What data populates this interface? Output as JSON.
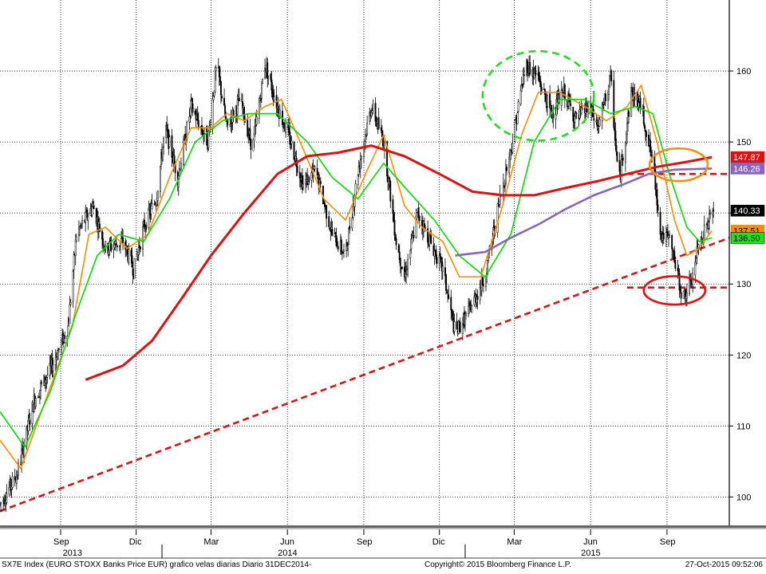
{
  "chart_data": {
    "type": "candlestick",
    "x_axis": {
      "month_labels": [
        {
          "label": "Sep",
          "date": "2013-09-01"
        },
        {
          "label": "Dic",
          "date": "2013-12-01"
        },
        {
          "label": "Mar",
          "date": "2014-03-01"
        },
        {
          "label": "Jun",
          "date": "2014-06-01"
        },
        {
          "label": "Sep",
          "date": "2014-09-01"
        },
        {
          "label": "Dic",
          "date": "2014-12-01"
        },
        {
          "label": "Mar",
          "date": "2015-03-01"
        },
        {
          "label": "Jun",
          "date": "2015-06-01"
        },
        {
          "label": "Sep",
          "date": "2015-09-01"
        }
      ],
      "year_labels": [
        {
          "label": "2013",
          "date": "2013-09-15"
        },
        {
          "label": "2014",
          "date": "2014-06-01"
        },
        {
          "label": "2015",
          "date": "2015-06-01"
        }
      ],
      "range": [
        "2013-06-20",
        "2015-11-15"
      ]
    },
    "y_axis": {
      "ticks": [
        100,
        110,
        120,
        130,
        140,
        150,
        160
      ],
      "range": [
        96,
        170
      ],
      "grid": true,
      "side": "right"
    },
    "price_path": [
      [
        "2013-06-20",
        99
      ],
      [
        "2013-07-10",
        103
      ],
      [
        "2013-08-01",
        114
      ],
      [
        "2013-08-20",
        118
      ],
      [
        "2013-09-10",
        124
      ],
      [
        "2013-09-20",
        137
      ],
      [
        "2013-10-10",
        141
      ],
      [
        "2013-10-25",
        135
      ],
      [
        "2013-11-15",
        136
      ],
      [
        "2013-11-28",
        132
      ],
      [
        "2013-12-10",
        138
      ],
      [
        "2013-12-25",
        142
      ],
      [
        "2014-01-05",
        152
      ],
      [
        "2014-01-20",
        145
      ],
      [
        "2014-02-05",
        155
      ],
      [
        "2014-02-25",
        150
      ],
      [
        "2014-03-08",
        161
      ],
      [
        "2014-03-20",
        152
      ],
      [
        "2014-04-05",
        156
      ],
      [
        "2014-04-20",
        149
      ],
      [
        "2014-05-05",
        161
      ],
      [
        "2014-05-20",
        155
      ],
      [
        "2014-06-05",
        150
      ],
      [
        "2014-06-20",
        144
      ],
      [
        "2014-07-05",
        146
      ],
      [
        "2014-07-25",
        137
      ],
      [
        "2014-08-10",
        134
      ],
      [
        "2014-08-25",
        146
      ],
      [
        "2014-09-10",
        155
      ],
      [
        "2014-09-25",
        150
      ],
      [
        "2014-10-10",
        136
      ],
      [
        "2014-10-20",
        131
      ],
      [
        "2014-11-05",
        140
      ],
      [
        "2014-11-20",
        136
      ],
      [
        "2014-12-05",
        132
      ],
      [
        "2014-12-20",
        123
      ],
      [
        "2015-01-05",
        126
      ],
      [
        "2015-01-25",
        131
      ],
      [
        "2015-02-10",
        141
      ],
      [
        "2015-02-25",
        149
      ],
      [
        "2015-03-15",
        161
      ],
      [
        "2015-03-30",
        159
      ],
      [
        "2015-04-15",
        154
      ],
      [
        "2015-04-30",
        157
      ],
      [
        "2015-05-15",
        153
      ],
      [
        "2015-05-30",
        155
      ],
      [
        "2015-06-10",
        152
      ],
      [
        "2015-06-25",
        159
      ],
      [
        "2015-07-05",
        144
      ],
      [
        "2015-07-20",
        157
      ],
      [
        "2015-08-01",
        155
      ],
      [
        "2015-08-15",
        147
      ],
      [
        "2015-08-25",
        137
      ],
      [
        "2015-09-05",
        136
      ],
      [
        "2015-09-20",
        128
      ],
      [
        "2015-09-30",
        130
      ],
      [
        "2015-10-10",
        136
      ],
      [
        "2015-10-27",
        140.33
      ]
    ],
    "ma_series": [
      {
        "color": "#ff8c00",
        "points": [
          [
            "2013-06-20",
            108
          ],
          [
            "2013-07-15",
            104
          ],
          [
            "2013-08-15",
            114
          ],
          [
            "2013-09-15",
            124
          ],
          [
            "2013-10-05",
            137
          ],
          [
            "2013-10-25",
            138
          ],
          [
            "2013-11-20",
            135
          ],
          [
            "2013-12-15",
            137
          ],
          [
            "2014-01-10",
            145
          ],
          [
            "2014-02-05",
            152
          ],
          [
            "2014-03-01",
            152
          ],
          [
            "2014-03-20",
            154
          ],
          [
            "2014-04-10",
            153
          ],
          [
            "2014-05-05",
            155
          ],
          [
            "2014-05-25",
            156
          ],
          [
            "2014-06-20",
            149
          ],
          [
            "2014-07-15",
            142
          ],
          [
            "2014-08-10",
            139
          ],
          [
            "2014-09-05",
            146
          ],
          [
            "2014-09-25",
            151
          ],
          [
            "2014-10-20",
            141
          ],
          [
            "2014-11-10",
            138
          ],
          [
            "2014-12-05",
            136
          ],
          [
            "2014-12-25",
            131
          ],
          [
            "2015-01-20",
            131
          ],
          [
            "2015-02-15",
            141
          ],
          [
            "2015-03-10",
            151
          ],
          [
            "2015-03-30",
            157
          ],
          [
            "2015-04-25",
            157
          ],
          [
            "2015-05-25",
            155
          ],
          [
            "2015-06-20",
            153
          ],
          [
            "2015-07-15",
            155
          ],
          [
            "2015-08-01",
            158
          ],
          [
            "2015-08-20",
            150
          ],
          [
            "2015-09-10",
            139
          ],
          [
            "2015-09-25",
            134
          ],
          [
            "2015-10-10",
            135
          ],
          [
            "2015-10-25",
            137.5
          ]
        ]
      },
      {
        "color": "#00dd00",
        "points": [
          [
            "2013-06-20",
            112
          ],
          [
            "2013-07-20",
            107
          ],
          [
            "2013-08-20",
            115
          ],
          [
            "2013-09-20",
            126
          ],
          [
            "2013-10-15",
            134
          ],
          [
            "2013-11-10",
            137
          ],
          [
            "2013-12-10",
            136
          ],
          [
            "2014-01-10",
            142
          ],
          [
            "2014-02-10",
            150
          ],
          [
            "2014-03-15",
            153
          ],
          [
            "2014-04-15",
            154
          ],
          [
            "2014-05-20",
            154
          ],
          [
            "2014-06-25",
            150
          ],
          [
            "2014-07-25",
            145
          ],
          [
            "2014-08-25",
            142
          ],
          [
            "2014-09-25",
            147
          ],
          [
            "2014-10-25",
            143
          ],
          [
            "2014-11-25",
            139
          ],
          [
            "2014-12-25",
            134
          ],
          [
            "2015-01-25",
            131
          ],
          [
            "2015-02-25",
            137
          ],
          [
            "2015-03-25",
            150
          ],
          [
            "2015-04-25",
            156
          ],
          [
            "2015-05-25",
            156
          ],
          [
            "2015-06-25",
            154
          ],
          [
            "2015-07-25",
            155
          ],
          [
            "2015-08-15",
            154
          ],
          [
            "2015-09-05",
            145
          ],
          [
            "2015-09-25",
            138
          ],
          [
            "2015-10-10",
            136
          ],
          [
            "2015-10-25",
            136.5
          ]
        ]
      },
      {
        "color": "#e01010",
        "points": [
          [
            "2013-10-01",
            116.5
          ],
          [
            "2013-11-15",
            118.5
          ],
          [
            "2013-12-20",
            122
          ],
          [
            "2014-01-25",
            128
          ],
          [
            "2014-03-01",
            134
          ],
          [
            "2014-04-10",
            140
          ],
          [
            "2014-05-20",
            145.5
          ],
          [
            "2014-06-25",
            148
          ],
          [
            "2014-08-01",
            148.5
          ],
          [
            "2014-09-10",
            149.5
          ],
          [
            "2014-10-20",
            148
          ],
          [
            "2014-12-01",
            145.5
          ],
          [
            "2015-01-10",
            143
          ],
          [
            "2015-02-15",
            142.5
          ],
          [
            "2015-03-25",
            142.5
          ],
          [
            "2015-05-01",
            143.5
          ],
          [
            "2015-06-10",
            144.5
          ],
          [
            "2015-07-15",
            145.5
          ],
          [
            "2015-08-20",
            146.5
          ],
          [
            "2015-09-25",
            147.2
          ],
          [
            "2015-10-25",
            147.87
          ]
        ]
      },
      {
        "color": "#8866bb",
        "points": [
          [
            "2014-12-20",
            134
          ],
          [
            "2015-01-25",
            134.5
          ],
          [
            "2015-02-25",
            136.5
          ],
          [
            "2015-04-01",
            138.5
          ],
          [
            "2015-05-01",
            140.5
          ],
          [
            "2015-06-05",
            142.5
          ],
          [
            "2015-07-10",
            144
          ],
          [
            "2015-08-10",
            145.5
          ],
          [
            "2015-09-10",
            146.1
          ],
          [
            "2015-10-25",
            146.26
          ]
        ]
      }
    ],
    "price_tags": [
      {
        "label": "147.87",
        "value": 147.87,
        "bg": "#e01010",
        "fg": "#ffffff"
      },
      {
        "label": "146.26",
        "value": 146.26,
        "bg": "#8866bb",
        "fg": "#ffffff"
      },
      {
        "label": "140.33",
        "value": 140.33,
        "bg": "#000000",
        "fg": "#ffffff"
      },
      {
        "label": "137.51",
        "value": 137.51,
        "bg": "#ff8c00",
        "fg": "#000000"
      },
      {
        "label": "136.50",
        "value": 136.5,
        "bg": "#22dd22",
        "fg": "#000000"
      }
    ],
    "trendlines": [
      {
        "type": "trend",
        "from": [
          "2013-06-20",
          98
        ],
        "to": [
          "2015-11-15",
          136.5
        ],
        "color": "#e01010",
        "dashed": true
      },
      {
        "type": "resistance",
        "from": [
          "2015-07-15",
          145.5
        ],
        "to": [
          "2015-11-15",
          145.5
        ],
        "color": "#e01010",
        "dashed": true
      },
      {
        "type": "support",
        "from": [
          "2015-07-15",
          129.5
        ],
        "to": [
          "2015-11-15",
          129.5
        ],
        "color": "#e01010",
        "dashed": true
      }
    ],
    "annotations": [
      {
        "shape": "ellipse",
        "center": [
          "2015-03-30",
          156.5
        ],
        "rx_days": 67,
        "ry": 6.3,
        "color": "#22dd22",
        "dashed": true
      },
      {
        "shape": "ellipse",
        "center": [
          "2015-09-15",
          146.8
        ],
        "rx_days": 35,
        "ry": 2.3,
        "color": "#ff8c00",
        "dashed": false
      },
      {
        "shape": "ellipse",
        "center": [
          "2015-09-10",
          129.1
        ],
        "rx_days": 37,
        "ry": 2.0,
        "color": "#e01010",
        "dashed": false
      }
    ]
  },
  "footer": {
    "left": "SX7E Index (EURO STOXX Banks Price EUR) grafico velas diarias  Diario 31DEC2014-",
    "center": "Copyright© 2015 Bloomberg Finance L.P.",
    "right": "27-Oct-2015 09:52:06"
  }
}
